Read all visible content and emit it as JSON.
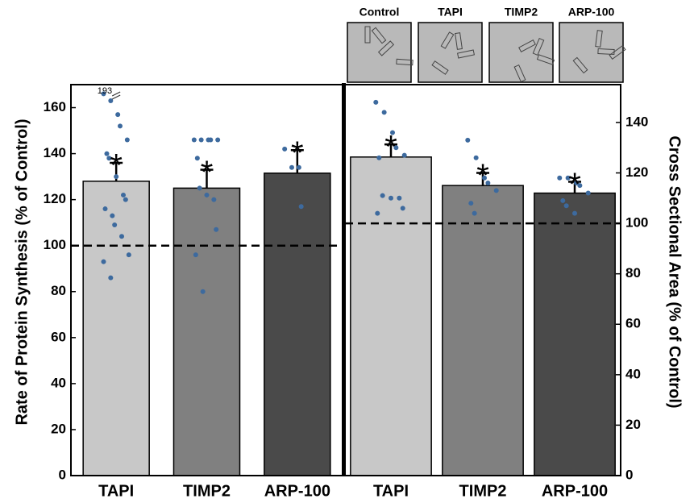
{
  "image_labels": [
    "Control",
    "TAPI",
    "TIMP2",
    "ARP-100"
  ],
  "chart_data": [
    {
      "type": "bar",
      "y_label": "Rate of Protein Synthesis (% of Control)",
      "y_side": "left",
      "categories": [
        "TAPI",
        "TIMP2",
        "ARP-100"
      ],
      "values": [
        128,
        125,
        131.5
      ],
      "errors": [
        8,
        8,
        10
      ],
      "colors": [
        "#c8c8c8",
        "#808080",
        "#4a4a4a"
      ],
      "point_color": "#3d6a9e",
      "points": [
        [
          166,
          163,
          157,
          152,
          146,
          140,
          138,
          130,
          122,
          120,
          116,
          113,
          109,
          104,
          96,
          93,
          86
        ],
        [
          146,
          146,
          146,
          146,
          146,
          138,
          125,
          122,
          120,
          107,
          96,
          80
        ],
        [
          142,
          134,
          134,
          117
        ]
      ],
      "annotations": [
        "*",
        "*",
        "*"
      ],
      "break_label": "193",
      "reference_line": 100,
      "ylim": [
        0,
        170
      ],
      "yticks": [
        0,
        20,
        40,
        60,
        80,
        100,
        120,
        140,
        160
      ]
    },
    {
      "type": "bar",
      "y_label": "Cross Sectional Area (% of Control)",
      "y_side": "right",
      "categories": [
        "TAPI",
        "TIMP2",
        "ARP-100"
      ],
      "values": [
        126.3,
        115,
        112
      ],
      "errors": [
        5,
        5,
        4.5
      ],
      "colors": [
        "#c8c8c8",
        "#808080",
        "#4a4a4a"
      ],
      "point_color": "#3d6a9e",
      "points": [
        [
          148,
          144,
          136,
          130,
          127,
          126,
          111,
          110,
          110,
          106,
          104
        ],
        [
          133,
          126,
          118,
          116,
          113,
          108,
          104
        ],
        [
          118,
          118,
          116,
          115,
          112,
          109,
          107,
          104
        ]
      ],
      "annotations": [
        "*",
        "*",
        "*"
      ],
      "reference_line": 100,
      "ylim": [
        0,
        155
      ],
      "yticks": [
        0,
        20,
        40,
        60,
        80,
        100,
        120,
        140
      ]
    }
  ]
}
